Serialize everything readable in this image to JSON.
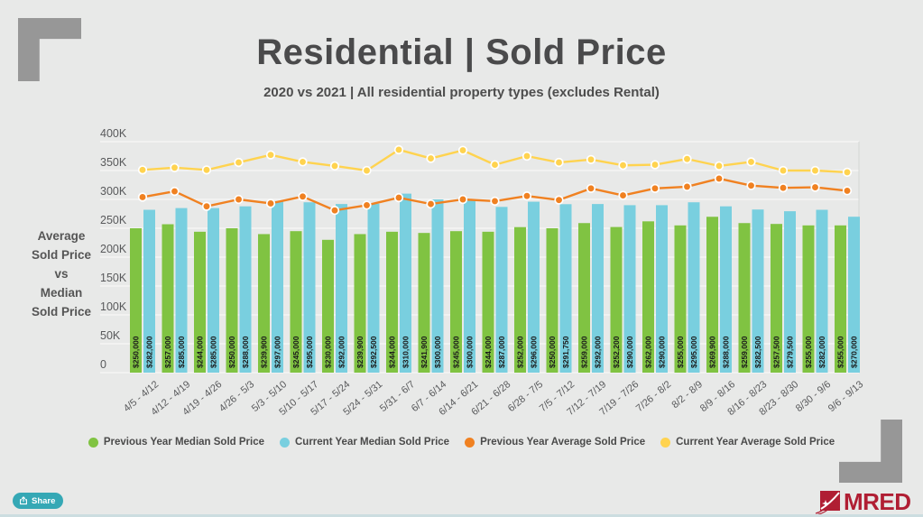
{
  "title": "Residential | Sold Price",
  "subtitle": "2020 vs 2021 | All residential property types (excludes Rental)",
  "y_axis_title": "Average\nSold Price\nvs\nMedian\nSold Price",
  "share_button": {
    "label": "Share"
  },
  "logo": {
    "text": "MRED"
  },
  "colors": {
    "background": "#E8E9E8",
    "corner_gray": "#979797",
    "title_text": "#4a4a4b",
    "green": "#80C342",
    "cyan": "#79CFDF",
    "orange": "#F08121",
    "yellow": "#FFD34F",
    "grid": "#f2f2f1",
    "bar_label_text": "#1a1a1a",
    "share_teal": "#35a8b5",
    "logo_red": "#b01e33"
  },
  "chart_data": {
    "type": "bar",
    "subtype": "grouped bars with two line overlays",
    "title": "Residential | Sold Price",
    "xlabel": "",
    "ylabel": "Average Sold Price vs Median Sold Price",
    "ylim": [
      0,
      400000
    ],
    "grid": true,
    "legend_position": "bottom",
    "y_ticks": [
      "400K",
      "350K",
      "300K",
      "250K",
      "200K",
      "150K",
      "100K",
      "50K",
      "0"
    ],
    "categories": [
      "4/5 - 4/12",
      "4/12 - 4/19",
      "4/19 - 4/26",
      "4/26 - 5/3",
      "5/3 - 5/10",
      "5/10 - 5/17",
      "5/17 - 5/24",
      "5/24 - 5/31",
      "5/31 - 6/7",
      "6/7 - 6/14",
      "6/14 - 6/21",
      "6/21 - 6/28",
      "6/28 - 7/5",
      "7/5 - 7/12",
      "7/12 - 7/19",
      "7/19 - 7/26",
      "7/26 - 8/2",
      "8/2 - 8/9",
      "8/9 - 8/16",
      "8/16 - 8/23",
      "8/23 - 8/30",
      "8/30 - 9/6",
      "9/6 - 9/13"
    ],
    "series": [
      {
        "name": "Previous Year Median Sold Price",
        "type": "bar",
        "color_key": "green",
        "values": [
          250000,
          257000,
          244000,
          250000,
          239900,
          245000,
          230000,
          239900,
          244000,
          241900,
          245000,
          244000,
          252000,
          250000,
          259000,
          252200,
          262000,
          255000,
          269900,
          259000,
          257500,
          255000,
          255000
        ]
      },
      {
        "name": "Current Year Median Sold Price",
        "type": "bar",
        "color_key": "cyan",
        "values": [
          282000,
          285000,
          285000,
          288000,
          297000,
          295000,
          292000,
          292500,
          310000,
          300000,
          300000,
          287000,
          296000,
          291750,
          292000,
          290000,
          290000,
          295000,
          288000,
          282500,
          279500,
          282000,
          270000
        ]
      },
      {
        "name": "Previous Year Average Sold Price",
        "type": "line",
        "color_key": "orange",
        "values_estimated": true,
        "values": [
          304000,
          314000,
          288000,
          300000,
          293000,
          305000,
          281000,
          290000,
          303000,
          292000,
          300000,
          297000,
          306000,
          299000,
          319000,
          307000,
          319000,
          322000,
          336000,
          324000,
          320000,
          321000,
          315000
        ]
      },
      {
        "name": "Current Year Average Sold Price",
        "type": "line",
        "color_key": "yellow",
        "values_estimated": true,
        "values": [
          351000,
          355000,
          351000,
          364000,
          377000,
          365000,
          358000,
          350000,
          386000,
          371000,
          385000,
          360000,
          375000,
          364000,
          369000,
          359000,
          360000,
          370000,
          358000,
          365000,
          350000,
          350000,
          347000
        ]
      }
    ]
  }
}
